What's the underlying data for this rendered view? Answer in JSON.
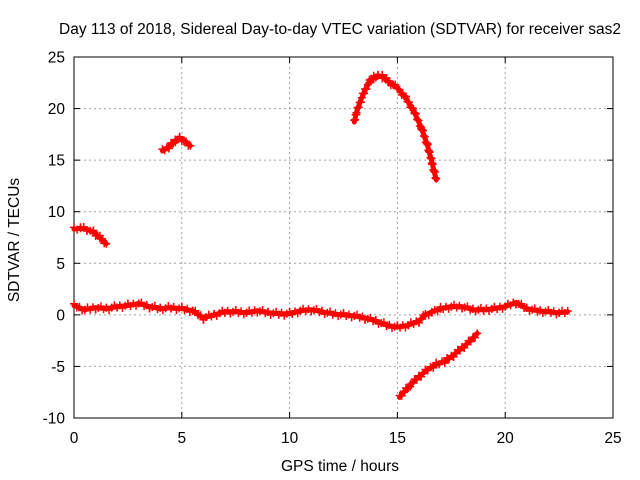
{
  "chart_data": {
    "type": "scatter",
    "title": "Day 113 of 2018, Sidereal Day-to-day VTEC variation (SDTVAR) for receiver sas2",
    "xlabel": "GPS time / hours",
    "ylabel": "SDTVAR / TECUs",
    "xlim": [
      0,
      25
    ],
    "ylim": [
      -10,
      25
    ],
    "xticks": [
      0,
      5,
      10,
      15,
      20,
      25
    ],
    "yticks": [
      -10,
      -5,
      0,
      5,
      10,
      15,
      20,
      25
    ],
    "xtick_labels": [
      "0",
      "5",
      "10",
      "15",
      "20",
      "25"
    ],
    "ytick_labels": [
      "-10",
      "-5",
      "0",
      "5",
      "10",
      "15",
      "20",
      "25"
    ],
    "grid": true,
    "marker": "plus",
    "color": "#ff0000",
    "series": [
      {
        "name": "arc-1",
        "points": [
          [
            0.0,
            8.3
          ],
          [
            0.3,
            8.4
          ],
          [
            0.6,
            8.3
          ],
          [
            0.9,
            8.0
          ],
          [
            1.2,
            7.5
          ],
          [
            1.5,
            6.9
          ]
        ]
      },
      {
        "name": "arc-2",
        "points": [
          [
            4.1,
            15.9
          ],
          [
            4.4,
            16.3
          ],
          [
            4.7,
            16.9
          ],
          [
            4.9,
            17.1
          ],
          [
            5.1,
            16.9
          ],
          [
            5.4,
            16.4
          ]
        ]
      },
      {
        "name": "arc-3",
        "points": [
          [
            13.0,
            18.7
          ],
          [
            13.1,
            19.6
          ],
          [
            13.3,
            20.8
          ],
          [
            13.5,
            21.8
          ],
          [
            13.7,
            22.6
          ],
          [
            13.9,
            23.0
          ],
          [
            14.1,
            23.2
          ],
          [
            14.3,
            23.1
          ],
          [
            14.6,
            22.6
          ],
          [
            15.0,
            22.0
          ],
          [
            15.4,
            21.0
          ],
          [
            15.8,
            19.6
          ],
          [
            16.1,
            18.2
          ],
          [
            16.4,
            16.4
          ],
          [
            16.6,
            14.8
          ],
          [
            16.8,
            13.1
          ]
        ]
      },
      {
        "name": "arc-4",
        "points": [
          [
            15.1,
            -8.0
          ],
          [
            15.3,
            -7.5
          ],
          [
            15.6,
            -6.8
          ],
          [
            16.0,
            -6.0
          ],
          [
            16.4,
            -5.3
          ],
          [
            16.8,
            -4.8
          ],
          [
            17.2,
            -4.5
          ],
          [
            17.6,
            -3.9
          ],
          [
            18.0,
            -3.2
          ],
          [
            18.4,
            -2.5
          ],
          [
            18.7,
            -1.8
          ]
        ]
      },
      {
        "name": "arc-5",
        "points": [
          [
            0.0,
            0.9
          ],
          [
            0.5,
            0.5
          ],
          [
            1.0,
            0.7
          ],
          [
            1.5,
            0.6
          ],
          [
            2.0,
            0.8
          ],
          [
            2.5,
            0.9
          ],
          [
            3.0,
            1.1
          ],
          [
            3.5,
            0.8
          ],
          [
            4.0,
            0.6
          ],
          [
            4.5,
            0.7
          ],
          [
            5.0,
            0.6
          ],
          [
            5.5,
            0.4
          ],
          [
            6.0,
            -0.3
          ],
          [
            6.5,
            0.0
          ],
          [
            7.0,
            0.3
          ],
          [
            7.5,
            0.3
          ],
          [
            8.0,
            0.2
          ],
          [
            8.5,
            0.4
          ],
          [
            9.0,
            0.2
          ],
          [
            9.5,
            0.1
          ],
          [
            10.0,
            0.1
          ],
          [
            10.5,
            0.4
          ],
          [
            11.0,
            0.5
          ],
          [
            11.5,
            0.3
          ],
          [
            12.0,
            0.1
          ],
          [
            12.5,
            0.0
          ],
          [
            13.0,
            -0.1
          ],
          [
            13.5,
            -0.3
          ],
          [
            14.0,
            -0.6
          ],
          [
            14.5,
            -1.0
          ],
          [
            15.0,
            -1.2
          ],
          [
            15.5,
            -1.0
          ],
          [
            16.0,
            -0.6
          ],
          [
            16.3,
            0.0
          ],
          [
            16.6,
            0.3
          ],
          [
            17.0,
            0.6
          ],
          [
            17.5,
            0.8
          ],
          [
            18.0,
            0.8
          ],
          [
            18.5,
            0.5
          ],
          [
            19.0,
            0.5
          ],
          [
            19.5,
            0.6
          ],
          [
            20.0,
            0.8
          ],
          [
            20.5,
            1.2
          ],
          [
            21.0,
            0.6
          ],
          [
            21.5,
            0.4
          ],
          [
            22.0,
            0.3
          ],
          [
            22.5,
            0.2
          ],
          [
            22.9,
            0.3
          ]
        ]
      }
    ]
  }
}
